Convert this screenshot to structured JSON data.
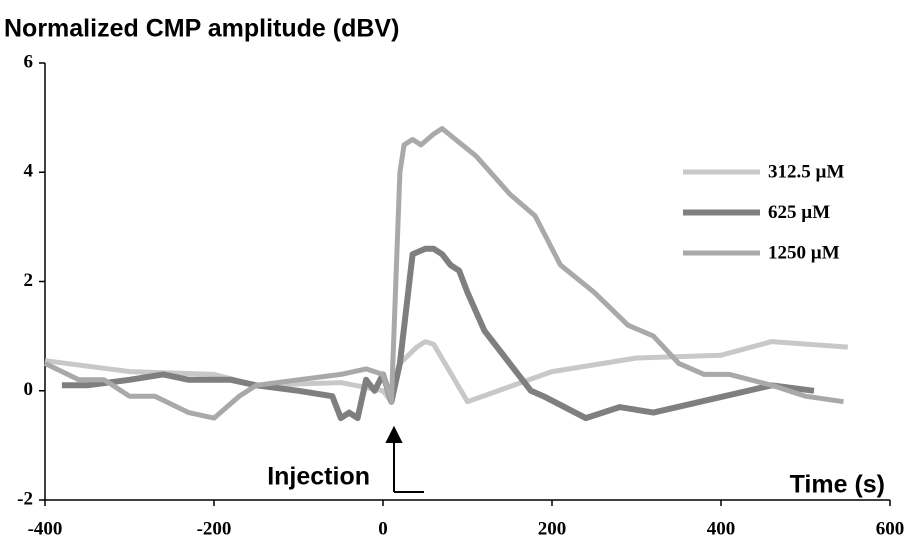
{
  "chart_data": {
    "type": "line",
    "title": "Normalized CMP amplitude (dBV)",
    "x_label": "Time (s)",
    "annotation": "Injection",
    "xlim": [
      -400,
      600
    ],
    "xticks": [
      -400,
      -200,
      0,
      200,
      400,
      600
    ],
    "ylim": [
      -2,
      6
    ],
    "yticks": [
      -2,
      0,
      2,
      4,
      6
    ],
    "grid": false,
    "legend": "upper right",
    "series": [
      {
        "name": "312.5 µM",
        "color": "#c8c8c8",
        "width": 5,
        "x": [
          -400,
          -300,
          -200,
          -150,
          -50,
          0,
          10,
          20,
          40,
          50,
          60,
          100,
          200,
          300,
          400,
          460,
          550
        ],
        "values": [
          0.55,
          0.35,
          0.3,
          0.1,
          0.15,
          0,
          -0.2,
          0.5,
          0.8,
          0.9,
          0.85,
          -0.2,
          0.35,
          0.6,
          0.65,
          0.9,
          0.8
        ]
      },
      {
        "name": "625 µM",
        "color": "#7f7f7f",
        "width": 6,
        "x": [
          -380,
          -350,
          -300,
          -260,
          -230,
          -200,
          -180,
          -150,
          -100,
          -60,
          -50,
          -40,
          -30,
          -20,
          -10,
          0,
          10,
          20,
          35,
          50,
          60,
          70,
          80,
          90,
          100,
          120,
          140,
          160,
          175,
          190,
          240,
          280,
          320,
          460,
          510
        ],
        "values": [
          0.1,
          0.1,
          0.2,
          0.3,
          0.2,
          0.2,
          0.2,
          0.1,
          0,
          -0.1,
          -0.5,
          -0.4,
          -0.5,
          0.2,
          0,
          0.3,
          -0.2,
          0.5,
          2.5,
          2.6,
          2.6,
          2.5,
          2.3,
          2.2,
          1.8,
          1.1,
          0.7,
          0.3,
          0,
          -0.1,
          -0.5,
          -0.3,
          -0.4,
          0.1,
          0
        ]
      },
      {
        "name": "1250 µM",
        "color": "#a9a9a9",
        "width": 5,
        "x": [
          -400,
          -360,
          -330,
          -300,
          -270,
          -230,
          -200,
          -170,
          -150,
          -100,
          -50,
          -20,
          0,
          10,
          20,
          25,
          35,
          45,
          60,
          70,
          110,
          150,
          180,
          210,
          250,
          290,
          320,
          350,
          380,
          410,
          460,
          500,
          545
        ],
        "values": [
          0.5,
          0.2,
          0.2,
          -0.1,
          -0.1,
          -0.4,
          -0.5,
          -0.1,
          0.1,
          0.2,
          0.3,
          0.4,
          0.3,
          -0.2,
          4.0,
          4.5,
          4.6,
          4.5,
          4.7,
          4.8,
          4.3,
          3.6,
          3.2,
          2.3,
          1.8,
          1.2,
          1.0,
          0.5,
          0.3,
          0.3,
          0.1,
          -0.1,
          -0.2
        ]
      }
    ]
  }
}
